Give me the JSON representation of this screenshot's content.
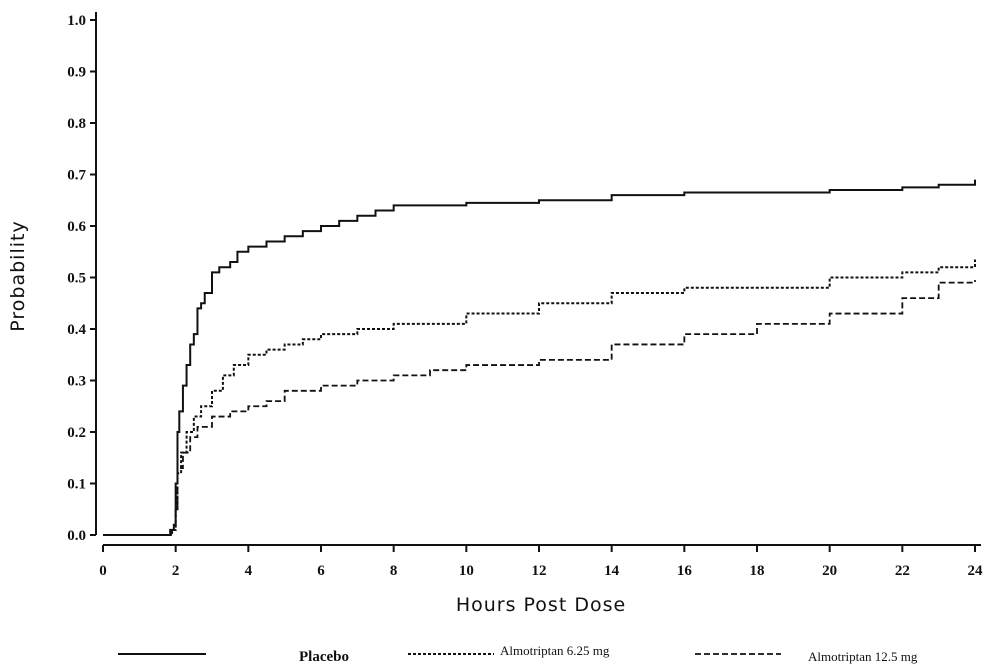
{
  "chart_data": {
    "type": "line",
    "step": true,
    "xlabel": "Hours Post Dose",
    "ylabel": "Probability",
    "xlim": [
      0,
      24
    ],
    "ylim": [
      0,
      1.0
    ],
    "xticks": [
      0,
      2,
      4,
      6,
      8,
      10,
      12,
      14,
      16,
      18,
      20,
      22,
      24
    ],
    "yticks": [
      "0.0",
      "0.1",
      "0.2",
      "0.3",
      "0.4",
      "0.5",
      "0.6",
      "0.7",
      "0.8",
      "0.9",
      "1.0"
    ],
    "grid": false,
    "legend_position": "bottom",
    "series": [
      {
        "name": "Placebo",
        "style": "solid",
        "x": [
          0,
          1.7,
          1.85,
          1.95,
          2.0,
          2.05,
          2.1,
          2.2,
          2.3,
          2.4,
          2.5,
          2.6,
          2.7,
          2.8,
          3.0,
          3.2,
          3.5,
          3.7,
          4.0,
          4.5,
          5.0,
          5.5,
          6.0,
          6.5,
          7.0,
          7.5,
          8.0,
          10.0,
          12.0,
          14.0,
          16.0,
          18.0,
          20.0,
          22.0,
          23.0,
          24.0
        ],
        "y": [
          0.0,
          0.0,
          0.01,
          0.02,
          0.1,
          0.2,
          0.24,
          0.29,
          0.33,
          0.37,
          0.39,
          0.44,
          0.45,
          0.47,
          0.51,
          0.52,
          0.53,
          0.55,
          0.56,
          0.57,
          0.58,
          0.59,
          0.6,
          0.61,
          0.62,
          0.63,
          0.64,
          0.645,
          0.65,
          0.66,
          0.665,
          0.665,
          0.67,
          0.675,
          0.68,
          0.69
        ]
      },
      {
        "name": "Almotriptan 6.25 mg",
        "style": "dotted",
        "x": [
          0,
          1.75,
          1.9,
          2.0,
          2.05,
          2.15,
          2.3,
          2.5,
          2.7,
          3.0,
          3.3,
          3.6,
          4.0,
          4.5,
          5.0,
          5.5,
          6.0,
          7.0,
          8.0,
          10.0,
          12.0,
          14.0,
          16.0,
          18.0,
          20.0,
          22.0,
          23.0,
          24.0
        ],
        "y": [
          0.0,
          0.0,
          0.01,
          0.05,
          0.12,
          0.16,
          0.2,
          0.23,
          0.25,
          0.28,
          0.31,
          0.33,
          0.35,
          0.36,
          0.37,
          0.38,
          0.39,
          0.4,
          0.41,
          0.43,
          0.45,
          0.47,
          0.48,
          0.48,
          0.5,
          0.51,
          0.52,
          0.535
        ]
      },
      {
        "name": "Almotriptan 12.5 mg",
        "style": "dashed",
        "x": [
          0,
          1.75,
          1.9,
          2.0,
          2.05,
          2.2,
          2.4,
          2.6,
          3.0,
          3.5,
          4.0,
          4.5,
          5.0,
          6.0,
          7.0,
          8.0,
          9.0,
          10.0,
          12.0,
          14.0,
          16.0,
          18.0,
          20.0,
          22.0,
          23.0,
          24.0
        ],
        "y": [
          0.0,
          0.0,
          0.01,
          0.05,
          0.13,
          0.16,
          0.19,
          0.21,
          0.23,
          0.24,
          0.25,
          0.26,
          0.28,
          0.29,
          0.3,
          0.31,
          0.32,
          0.33,
          0.34,
          0.37,
          0.39,
          0.41,
          0.43,
          0.46,
          0.49,
          0.495
        ]
      }
    ]
  }
}
